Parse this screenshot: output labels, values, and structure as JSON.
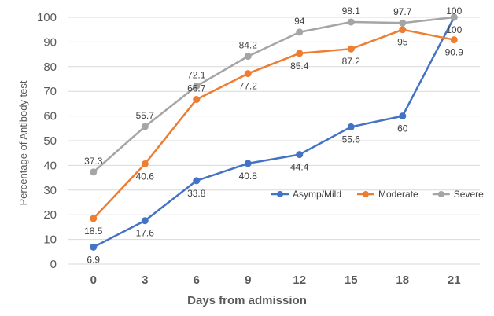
{
  "chart_data": {
    "type": "line",
    "title": "",
    "xlabel": "Days from admission",
    "ylabel": "Percentage of Antibody test",
    "categories": [
      "0",
      "3",
      "6",
      "9",
      "12",
      "15",
      "18",
      "21"
    ],
    "ylim": [
      0,
      100
    ],
    "yticks": [
      0,
      10,
      20,
      30,
      40,
      50,
      60,
      70,
      80,
      90,
      100
    ],
    "grid": true,
    "legend_position": "bottom-right",
    "series": [
      {
        "name": "Asymp/Mild",
        "color": "#4472c4",
        "values": [
          6.9,
          17.6,
          33.8,
          40.8,
          44.4,
          55.6,
          60,
          100
        ]
      },
      {
        "name": "Moderate",
        "color": "#ed7d31",
        "values": [
          18.5,
          40.6,
          66.7,
          77.2,
          85.4,
          87.2,
          95,
          90.9
        ]
      },
      {
        "name": "Severe",
        "color": "#a5a5a5",
        "values": [
          37.3,
          55.7,
          72.1,
          84.2,
          94,
          98.1,
          97.7,
          100
        ]
      }
    ]
  }
}
